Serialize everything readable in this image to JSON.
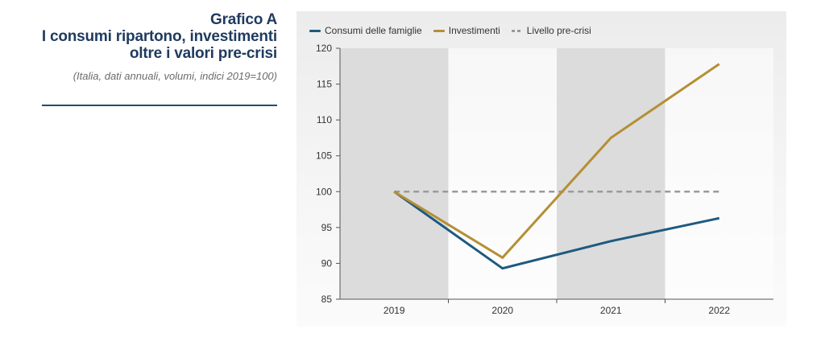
{
  "heading": {
    "title_line1": "Grafico A",
    "title_line2": "I consumi ripartono, investimenti",
    "title_line3": "oltre i valori pre-crisi",
    "subtitle": "(Italia, dati annuali, volumi, indici 2019=100)"
  },
  "legend": {
    "items": [
      {
        "label": "Consumi delle famiglie",
        "color": "#1d5a7e",
        "style": "solid"
      },
      {
        "label": "Investimenti",
        "color": "#b48f35",
        "style": "solid"
      },
      {
        "label": "Livello pre-crisi",
        "color": "#9a9a9a",
        "style": "dashed"
      }
    ]
  },
  "chart_data": {
    "type": "line",
    "categories": [
      "2019",
      "2020",
      "2021",
      "2022"
    ],
    "series": [
      {
        "name": "Consumi delle famiglie",
        "color": "#1d5a7e",
        "values": [
          100,
          89.3,
          93.1,
          96.3
        ]
      },
      {
        "name": "Investimenti",
        "color": "#b48f35",
        "values": [
          100,
          90.8,
          107.5,
          117.8
        ]
      },
      {
        "name": "Livello pre-crisi",
        "color": "#9a9a9a",
        "dashed": true,
        "values": [
          100,
          100,
          100,
          100
        ]
      }
    ],
    "ylim": [
      85,
      120
    ],
    "yticks": [
      85,
      90,
      95,
      100,
      105,
      110,
      115,
      120
    ],
    "grid": false,
    "legend_position": "top-left",
    "shaded_categories": [
      "2019",
      "2021"
    ]
  }
}
